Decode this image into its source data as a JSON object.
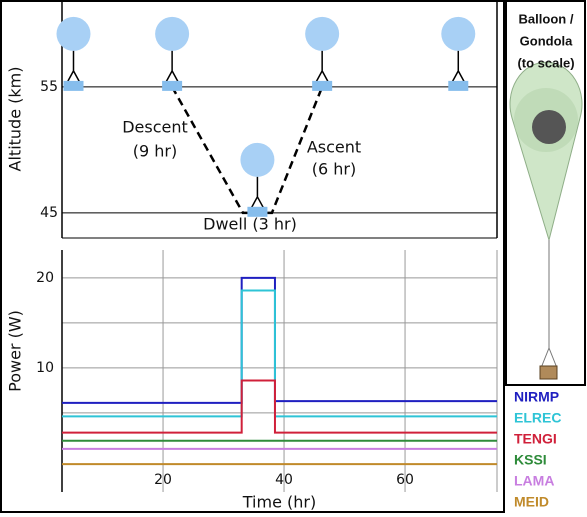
{
  "chart_data": [
    {
      "type": "profile",
      "ylabel": "Altitude (km)",
      "ylim": [
        43,
        61.9
      ],
      "yticks": [
        45,
        55
      ],
      "xlim": [
        3.3,
        75.2
      ],
      "path": {
        "x": [
          21.5,
          33.2,
          38,
          46.3
        ],
        "y": [
          55,
          45,
          45,
          55
        ]
      },
      "balloons": {
        "x": [
          5.2,
          21.5,
          35.6,
          46.3,
          68.8
        ],
        "y": [
          55,
          55,
          45,
          55,
          55
        ]
      },
      "annotations": [
        "Descent",
        "(9 hr)",
        "Ascent",
        "(6 hr)",
        "Dwell (3 hr)"
      ]
    },
    {
      "type": "line",
      "xlabel": "Time (hr)",
      "ylabel": "Power (W)",
      "xlim": [
        3.3,
        75.2
      ],
      "xticks": [
        20,
        40,
        60
      ],
      "ylim": [
        -3.8,
        23.1
      ],
      "yticks": [
        10,
        20
      ],
      "minor_ygrid": [
        5,
        15
      ],
      "grid": true,
      "x": [
        3.3,
        33,
        33,
        38.5,
        38.5,
        75.2
      ],
      "series": [
        {
          "name": "NIRMP",
          "color": "#1f1fc0",
          "values": [
            6.1,
            6.1,
            20,
            20,
            6.3,
            6.3
          ]
        },
        {
          "name": "ELREC",
          "color": "#2ec4d6",
          "values": [
            4.6,
            4.6,
            18.6,
            18.6,
            4.6,
            4.6
          ]
        },
        {
          "name": "TENGI",
          "color": "#d0203a",
          "values": [
            2.8,
            2.8,
            8.6,
            8.6,
            2.8,
            2.8
          ]
        },
        {
          "name": "KSSI",
          "color": "#2e8b3a",
          "values": [
            1.9,
            1.9,
            1.9,
            1.9,
            1.9,
            1.9
          ]
        },
        {
          "name": "LAMA",
          "color": "#c87ee0",
          "values": [
            1.0,
            1.0,
            1.0,
            1.0,
            1.0,
            1.0
          ]
        },
        {
          "name": "MEID",
          "color": "#c08a2a",
          "values": [
            -0.7,
            -0.7,
            -0.7,
            -0.7,
            -0.7,
            -0.7
          ]
        }
      ]
    }
  ],
  "scale_panel": {
    "title_lines": [
      "Balloon /",
      "Gondola",
      "(to scale)"
    ]
  }
}
